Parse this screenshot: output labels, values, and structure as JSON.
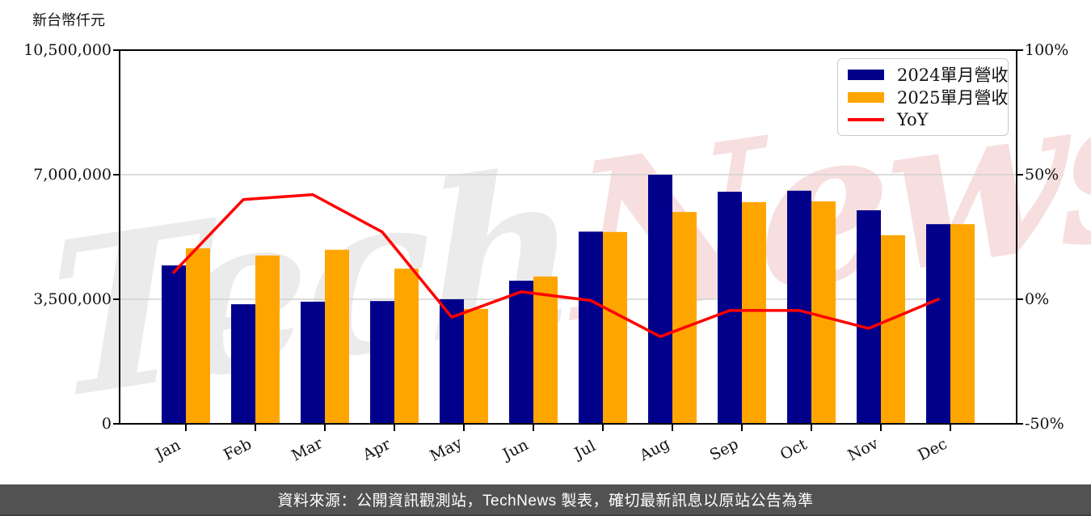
{
  "unit_label": "新台幣仟元",
  "watermark": {
    "part1": "Tech",
    "part2": "News",
    "color1": "#ebebeb",
    "color2": "#f7dfdf"
  },
  "legend": [
    {
      "label": "2024單月營收",
      "swatch": "bar",
      "color": "#00008B"
    },
    {
      "label": "2025單月營收",
      "swatch": "bar",
      "color": "#FFA500"
    },
    {
      "label": "YoY",
      "swatch": "line",
      "color": "#FF0000"
    }
  ],
  "footer": {
    "text": "資料來源：公開資訊觀測站，TechNews 製表，確切最新訊息以原站公告為準",
    "bg": "#525252"
  },
  "chart_data": {
    "type": "bar",
    "subtype": "grouped-bars-with-line",
    "categories": [
      "Jan",
      "Feb",
      "Mar",
      "Apr",
      "May",
      "Jun",
      "Jul",
      "Aug",
      "Sep",
      "Oct",
      "Nov",
      "Dec"
    ],
    "series": [
      {
        "name": "2024單月營收",
        "type": "bar",
        "axis": "left",
        "color": "#00008B",
        "values": [
          4450000,
          3360000,
          3430000,
          3450000,
          3500000,
          4020000,
          5400000,
          7000000,
          6520000,
          6550000,
          6000000,
          5610000
        ]
      },
      {
        "name": "2025單月營收",
        "type": "bar",
        "axis": "left",
        "color": "#FFA500",
        "values": [
          4930000,
          4730000,
          4890000,
          4360000,
          3230000,
          4140000,
          5390000,
          5950000,
          6230000,
          6250000,
          5300000,
          5610000
        ]
      },
      {
        "name": "YoY",
        "type": "line",
        "axis": "right",
        "color": "#FF0000",
        "values_pct": [
          10.8,
          40,
          42,
          27,
          -7.2,
          3,
          -0.5,
          -15,
          -4.5,
          -4.5,
          -11.7,
          0
        ]
      }
    ],
    "left_axis": {
      "label": "新台幣仟元",
      "range": [
        0,
        10500000
      ],
      "ticks": [
        0,
        3500000,
        7000000,
        10500000
      ],
      "tick_labels": [
        "0",
        "3,500,000",
        "7,000,000",
        "10,500,000"
      ]
    },
    "right_axis": {
      "label": "",
      "range": [
        -50,
        100
      ],
      "ticks_pct": [
        -50,
        0,
        50,
        100
      ],
      "tick_labels": [
        "-50%",
        "0%",
        "50%",
        "100%"
      ]
    },
    "grid": {
      "horizontal_at": [
        3500000,
        7000000
      ],
      "color": "#d2d2d2"
    },
    "legend_position": "upper right",
    "frame_color": "#000000"
  }
}
